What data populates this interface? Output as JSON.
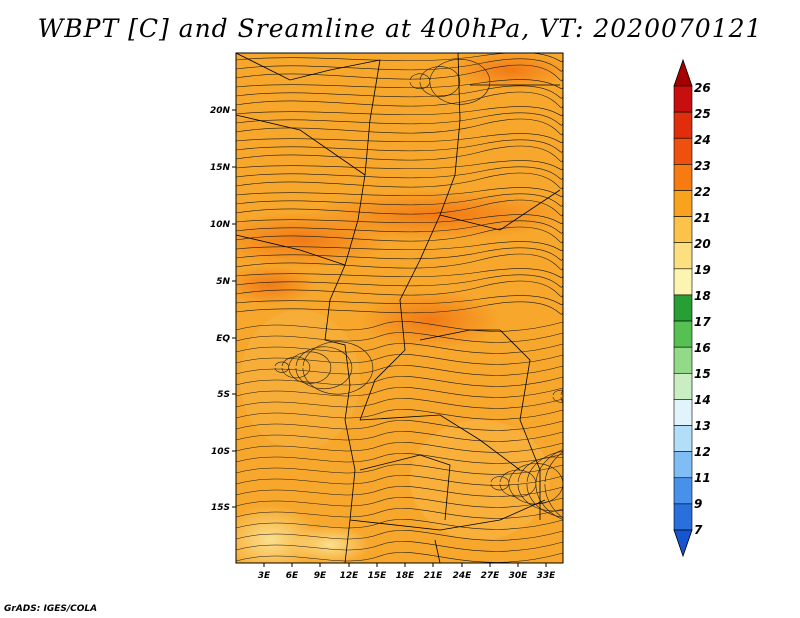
{
  "title": "WBPT [C] and Sreamline at 400hPa, VT: 2020070121",
  "footer": "GrADS: IGES/COLA",
  "map": {
    "lat_labels": [
      "20N",
      "15N",
      "10N",
      "5N",
      "EQ",
      "5S",
      "10S",
      "15S"
    ],
    "lon_labels": [
      "3E",
      "6E",
      "9E",
      "12E",
      "15E",
      "18E",
      "21E",
      "24E",
      "27E",
      "30E",
      "33E"
    ]
  },
  "colorbar": {
    "levels": [
      "26",
      "25",
      "24",
      "23",
      "22",
      "21",
      "20",
      "19",
      "18",
      "17",
      "16",
      "15",
      "14",
      "13",
      "12",
      "11",
      "9",
      "7"
    ],
    "colors": [
      "#a50000",
      "#c80f0f",
      "#e02e0c",
      "#f0500f",
      "#f87b12",
      "#f9a21d",
      "#fbc34a",
      "#fcdf7e",
      "#fbf5b1",
      "#279f34",
      "#56c152",
      "#92d988",
      "#c9eec1",
      "#e2f4fb",
      "#b3def9",
      "#7fbdf4",
      "#4891ea",
      "#2970dc",
      "#1655cf"
    ]
  }
}
